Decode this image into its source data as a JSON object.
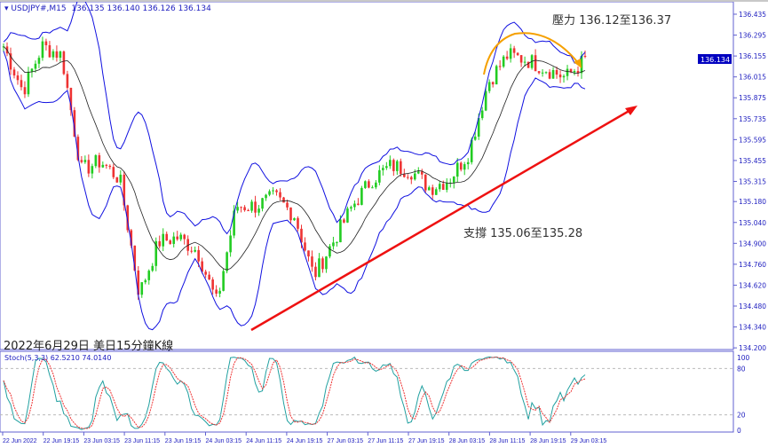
{
  "header": {
    "symbol": "USDJPY#,M15",
    "ohlc": "136.135 136.140 136.126 136.134"
  },
  "current_price": "136.134",
  "price_axis": [
    "136.435",
    "136.295",
    "136.155",
    "136.015",
    "135.875",
    "135.735",
    "135.595",
    "135.455",
    "135.315",
    "135.180",
    "135.040",
    "134.900",
    "134.760",
    "134.620",
    "134.480",
    "134.340",
    "134.200"
  ],
  "time_axis": [
    "22 Jun 2022",
    "22 Jun 19:15",
    "23 Jun 03:15",
    "23 Jun 11:15",
    "23 Jun 19:15",
    "24 Jun 03:15",
    "24 Jun 11:15",
    "24 Jun 19:15",
    "27 Jun 03:15",
    "27 Jun 11:15",
    "27 Jun 19:15",
    "28 Jun 03:15",
    "28 Jun 11:15",
    "28 Jun 19:15",
    "29 Jun 03:15"
  ],
  "annotations": {
    "resistance": "壓力 136.12至136.37",
    "support": "支撐 135.06至135.28",
    "caption": "2022年6月29日 美日15分鐘K線"
  },
  "stoch": {
    "label": "Stoch(5,3,3) 62.5210 74.0140",
    "levels": [
      "100",
      "80",
      "20",
      "0"
    ]
  },
  "colors": {
    "bull": "#22cc22",
    "bear": "#ee3333",
    "bands": "#1010e0",
    "trend": "#ee1111",
    "arc": "#f5a000",
    "stoch_main": "#20a0a0",
    "stoch_signal": "#ee3333"
  },
  "price_path": [
    136.22,
    135.92,
    136.22,
    136.16,
    135.39,
    135.45,
    135.33,
    134.56,
    134.91,
    134.94,
    134.85,
    134.5,
    135.15,
    135.15,
    135.21,
    135.09,
    134.68,
    134.91,
    135.15,
    135.33,
    135.42,
    135.39,
    135.27,
    135.33,
    135.51,
    135.98,
    136.16,
    136.13,
    136.07,
    136.01,
    136.13
  ]
}
